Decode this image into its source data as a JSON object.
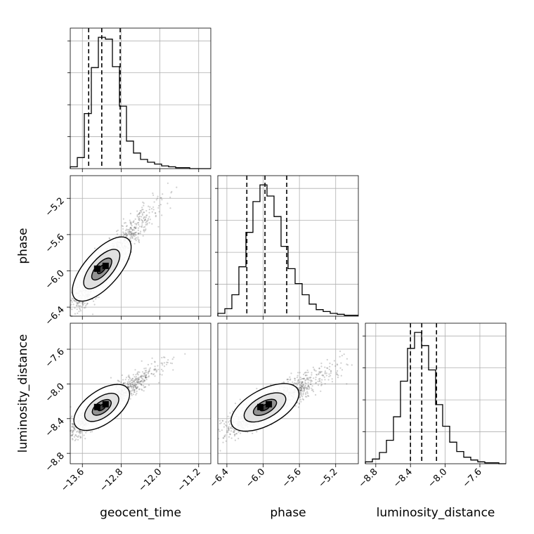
{
  "chart_data": {
    "type": "corner",
    "parameters": [
      "geocent_time",
      "phase",
      "luminosity_distance"
    ],
    "axis_labels": {
      "x": [
        "geocent_time",
        "phase",
        "luminosity_distance"
      ],
      "y": [
        "",
        "phase",
        "luminosity_distance"
      ]
    },
    "ranges": {
      "geocent_time": [
        -13.85,
        -10.95
      ],
      "phase": [
        -6.5,
        -4.95
      ],
      "luminosity_distance": [
        -8.92,
        -7.3
      ]
    },
    "ticks": {
      "geocent_time": [
        -13.6,
        -12.8,
        -12.0,
        -11.2
      ],
      "phase": [
        -6.4,
        -6.0,
        -5.6,
        -5.2
      ],
      "luminosity_distance": [
        -8.8,
        -8.4,
        -8.0,
        -7.6
      ]
    },
    "tick_labels": {
      "geocent_time": [
        "−13.6",
        "−12.8",
        "−12.0",
        "−11.2"
      ],
      "phase": [
        "−6.4",
        "−6.0",
        "−5.6",
        "−5.2"
      ],
      "luminosity_distance": [
        "−8.8",
        "−8.4",
        "−8.0",
        "−7.6"
      ]
    },
    "quantiles": {
      "geocent_time": [
        -13.47,
        -13.2,
        -12.82
      ],
      "phase": [
        -6.18,
        -5.98,
        -5.74
      ],
      "luminosity_distance": [
        -8.4,
        -8.27,
        -8.1
      ]
    },
    "histograms": {
      "geocent_time": {
        "edges": [
          -13.85,
          -13.705,
          -13.56,
          -13.415,
          -13.27,
          -13.125,
          -12.98,
          -12.835,
          -12.69,
          -12.545,
          -12.4,
          -12.255,
          -12.11,
          -11.965,
          -11.82,
          -11.675,
          -11.53,
          -11.385,
          -11.24,
          -11.095,
          -10.95
        ],
        "counts": [
          2,
          12,
          60,
          110,
          143,
          141,
          111,
          68,
          30,
          17,
          10,
          7,
          5,
          3,
          2,
          1,
          1,
          0,
          0,
          0
        ]
      },
      "phase": {
        "edges": [
          -6.5,
          -6.4225,
          -6.345,
          -6.2675,
          -6.19,
          -6.1125,
          -6.035,
          -5.9575,
          -5.88,
          -5.8025,
          -5.725,
          -5.6475,
          -5.57,
          -5.4925,
          -5.415,
          -5.3375,
          -5.26,
          -5.1825,
          -5.105,
          -5.0275,
          -4.95
        ],
        "counts": [
          3,
          8,
          23,
          53,
          90,
          123,
          141,
          129,
          107,
          75,
          51,
          35,
          23,
          13,
          7,
          5,
          3,
          2,
          1,
          1
        ]
      },
      "luminosity_distance": {
        "edges": [
          -8.92,
          -8.839,
          -8.758,
          -8.677,
          -8.596,
          -8.515,
          -8.434,
          -8.353,
          -8.272,
          -8.191,
          -8.11,
          -8.029,
          -7.948,
          -7.867,
          -7.786,
          -7.705,
          -7.624,
          -7.543,
          -7.462,
          -7.381,
          -7.3
        ],
        "counts": [
          2,
          5,
          12,
          25,
          50,
          88,
          123,
          140,
          126,
          100,
          63,
          40,
          23,
          13,
          7,
          4,
          2,
          1,
          1,
          0
        ]
      }
    },
    "correlations": {
      "phase|geocent_time": 0.9,
      "luminosity_distance|geocent_time": 0.87,
      "luminosity_distance|phase": 0.84
    },
    "grid": true
  }
}
